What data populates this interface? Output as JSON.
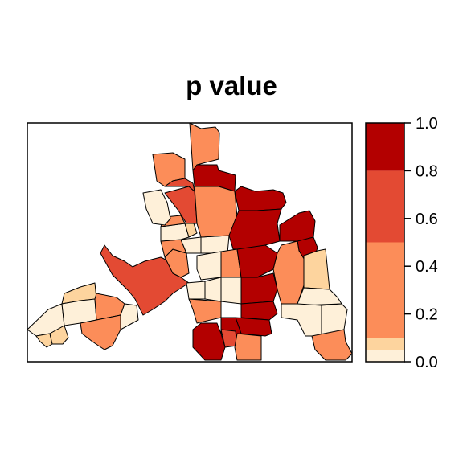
{
  "title": "p value",
  "legend": {
    "breaks": [
      0.0,
      0.05,
      0.1,
      0.5,
      0.7,
      0.8,
      1.0
    ],
    "colors": [
      "#FEF0D9",
      "#FDD49E",
      "#FC8D59",
      "#E34A33",
      "#E34A33",
      "#B30000"
    ],
    "tick_labels": [
      "0.0",
      "0.2",
      "0.4",
      "0.6",
      "0.8",
      "1.0"
    ]
  },
  "map": {
    "region_classes": {
      "very_low": "#FEF0D9",
      "low": "#FDD49E",
      "mid": "#FC8D59",
      "high": "#E34A33",
      "very_high": "#B30000"
    }
  }
}
